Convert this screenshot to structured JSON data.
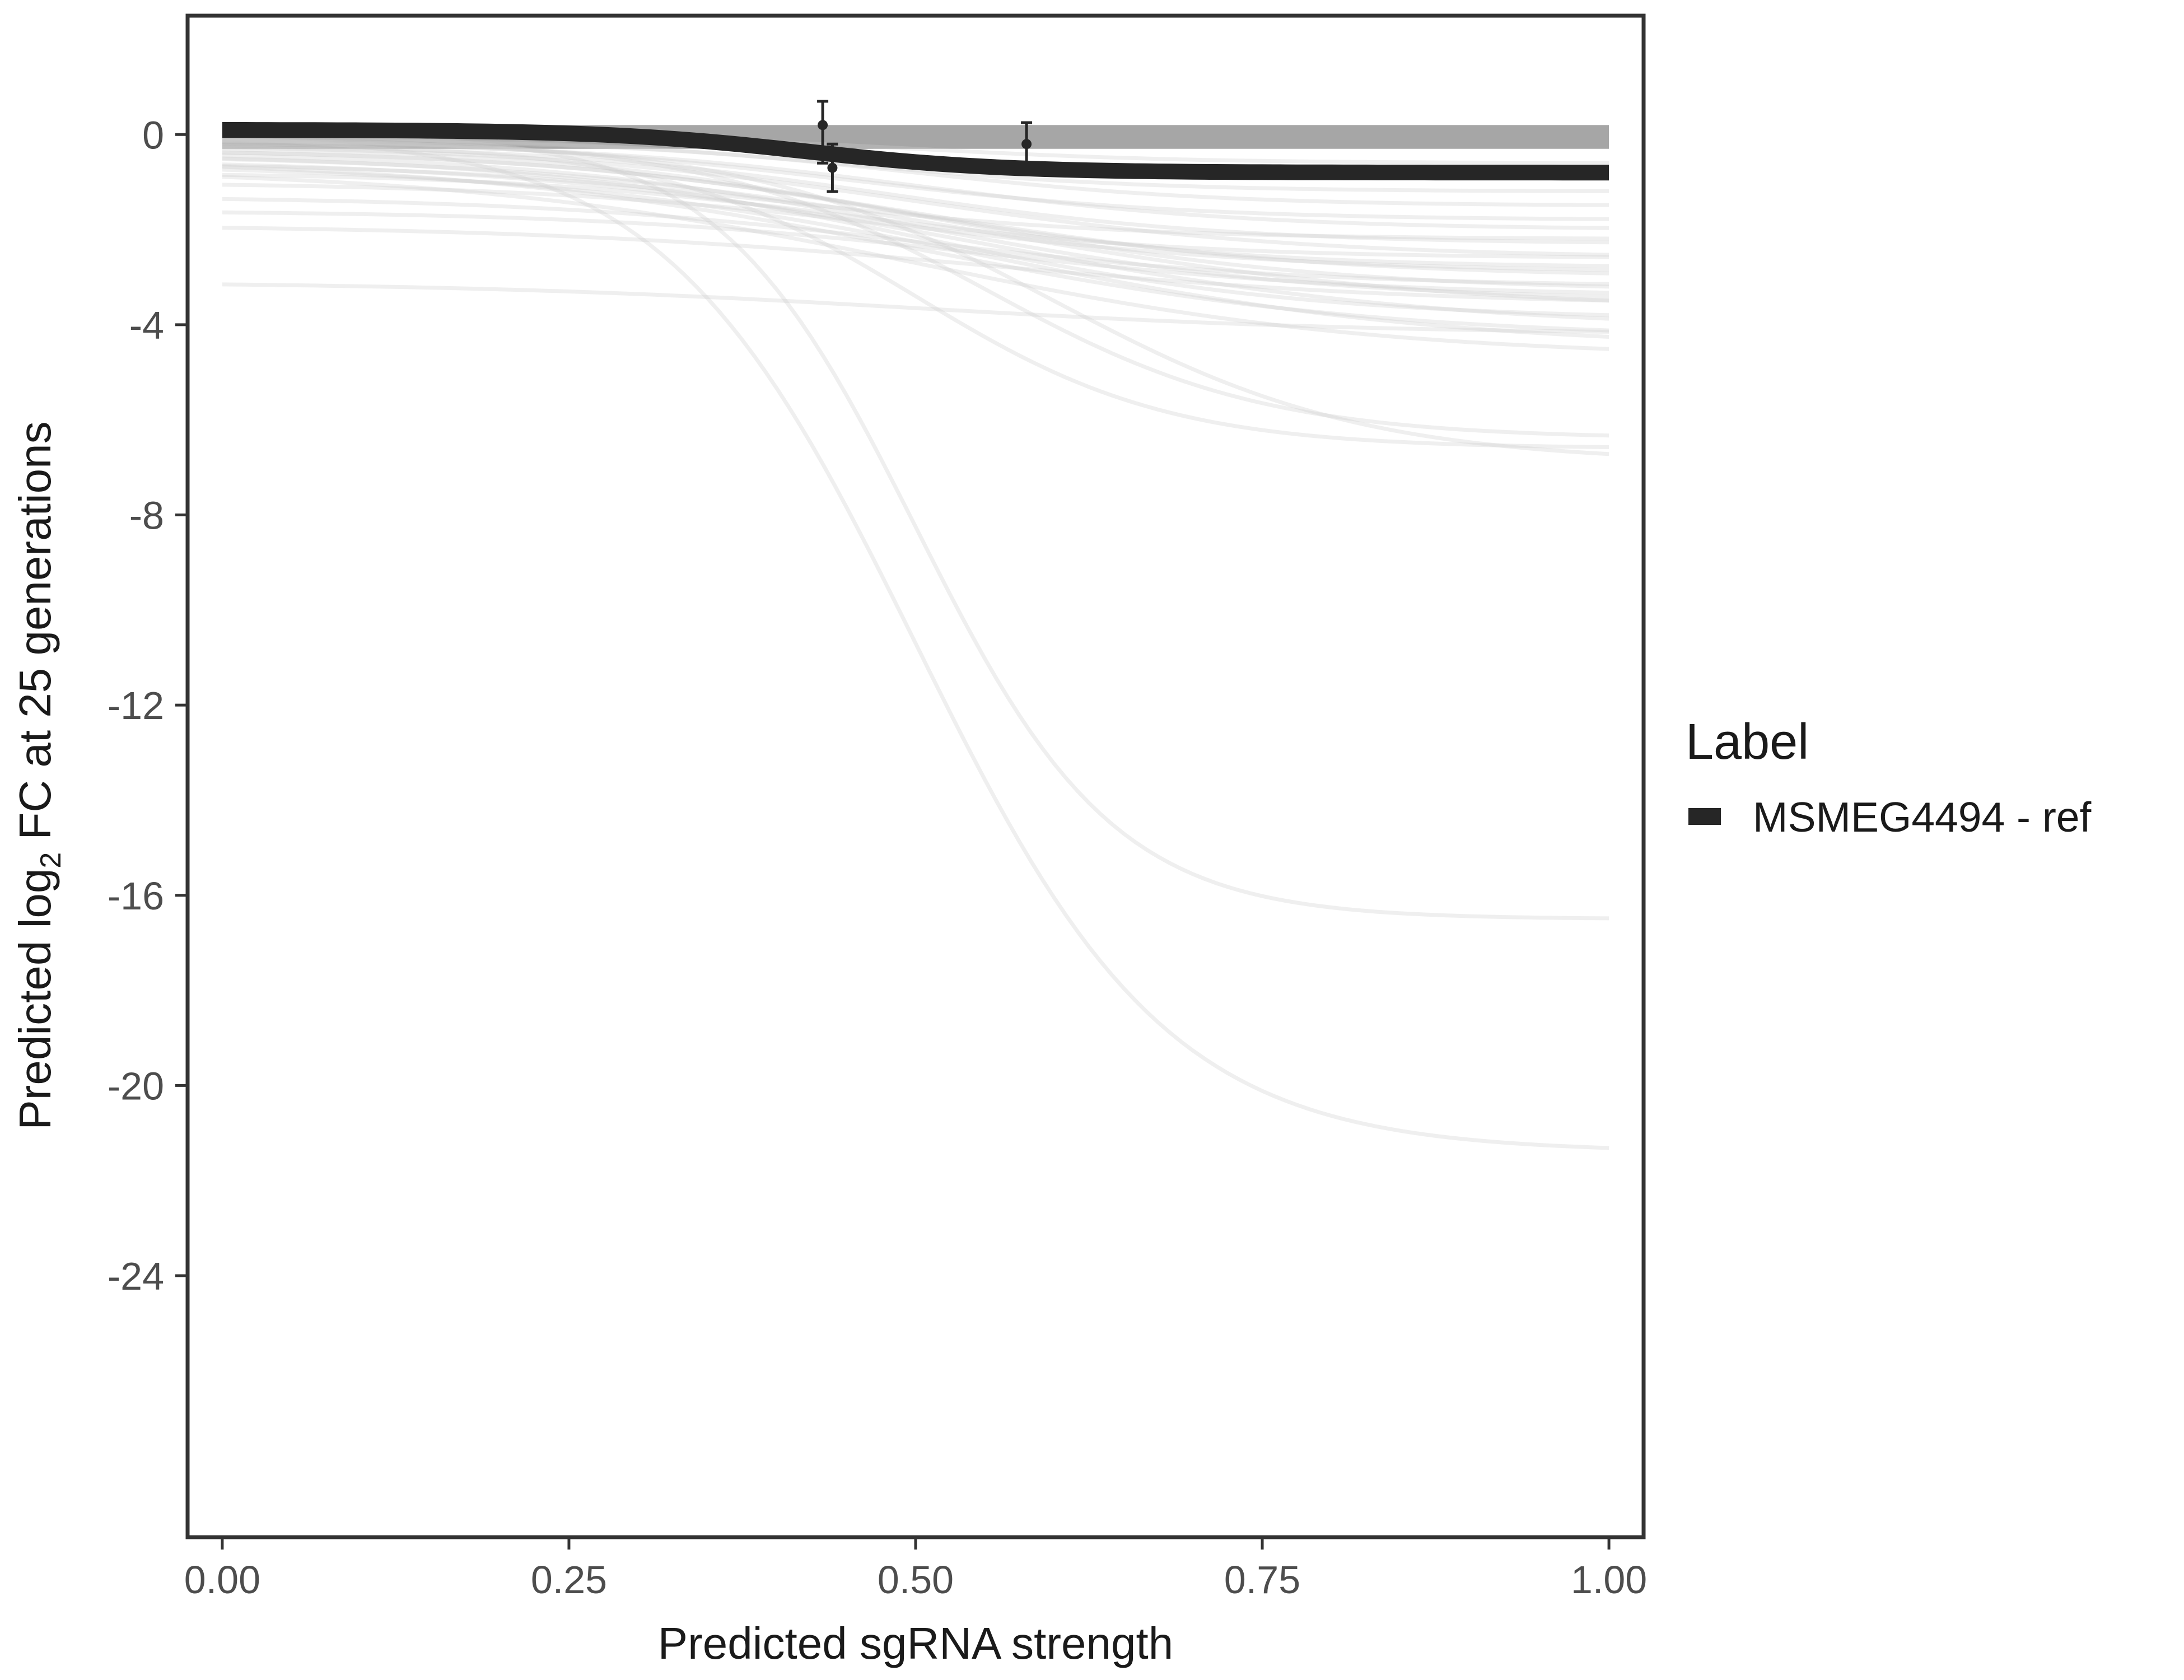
{
  "chart_data": {
    "type": "line",
    "title": "",
    "xlabel": "Predicted sgRNA strength",
    "ylabel_parts": [
      "Predicted  log",
      "2",
      " FC at 25 generations"
    ],
    "xlim": [
      -0.025,
      1.025
    ],
    "ylim": [
      -29.5,
      2.5
    ],
    "x_ticks": [
      0,
      0.25,
      0.5,
      0.75,
      1
    ],
    "x_tick_labels": [
      "0.00",
      "0.25",
      "0.50",
      "0.75",
      "1.00"
    ],
    "y_ticks": [
      0,
      -4,
      -8,
      -12,
      -16,
      -20,
      -24
    ],
    "y_tick_labels": [
      "0",
      "-4",
      "-8",
      "-12",
      "-16",
      "-20",
      "-24"
    ],
    "grid": false,
    "legend": {
      "title": "Label",
      "position": "right",
      "entries": [
        {
          "label": "MSMEG4494 - ref",
          "color": "#262626"
        }
      ]
    },
    "highlight_series": {
      "name": "MSMEG4494 - ref",
      "color": "#262626",
      "start": 0.1,
      "end": -0.8,
      "midpoint": 0.42,
      "steepness": 14
    },
    "band": {
      "x_range": [
        0,
        1
      ],
      "upper": 0.2,
      "lower": -0.3,
      "color": "#a6a6a6"
    },
    "background_curves": [
      {
        "start": 0,
        "end": -0.6,
        "mid": 0.5,
        "k": 10
      },
      {
        "start": 0,
        "end": -0.9,
        "mid": 0.45,
        "k": 10
      },
      {
        "start": -0.05,
        "end": -1.2,
        "mid": 0.45,
        "k": 9
      },
      {
        "start": -0.1,
        "end": -1.5,
        "mid": 0.5,
        "k": 9
      },
      {
        "start": -0.1,
        "end": -1.8,
        "mid": 0.45,
        "k": 8
      },
      {
        "start": -0.15,
        "end": -2.0,
        "mid": 0.5,
        "k": 8
      },
      {
        "start": -0.2,
        "end": -2.3,
        "mid": 0.48,
        "k": 8
      },
      {
        "start": -0.2,
        "end": -2.6,
        "mid": 0.5,
        "k": 7
      },
      {
        "start": -0.25,
        "end": -2.8,
        "mid": 0.47,
        "k": 8
      },
      {
        "start": -0.3,
        "end": -3.0,
        "mid": 0.5,
        "k": 7
      },
      {
        "start": -0.3,
        "end": -3.3,
        "mid": 0.52,
        "k": 7
      },
      {
        "start": -0.35,
        "end": -3.5,
        "mid": 0.5,
        "k": 7
      },
      {
        "start": -0.4,
        "end": -3.7,
        "mid": 0.55,
        "k": 6
      },
      {
        "start": -0.4,
        "end": -3.9,
        "mid": 0.5,
        "k": 7
      },
      {
        "start": -0.5,
        "end": -4.1,
        "mid": 0.55,
        "k": 6
      },
      {
        "start": -0.5,
        "end": -4.3,
        "mid": 0.5,
        "k": 6
      },
      {
        "start": -0.6,
        "end": -4.5,
        "mid": 0.55,
        "k": 6
      },
      {
        "start": -0.7,
        "end": -4.7,
        "mid": 0.5,
        "k": 6
      },
      {
        "start": -0.6,
        "end": -2.2,
        "mid": 0.4,
        "k": 8
      },
      {
        "start": -0.8,
        "end": -2.6,
        "mid": 0.45,
        "k": 8
      },
      {
        "start": -1.0,
        "end": -2.9,
        "mid": 0.5,
        "k": 7
      },
      {
        "start": -1.3,
        "end": -3.2,
        "mid": 0.5,
        "k": 7
      },
      {
        "start": -1.6,
        "end": -3.4,
        "mid": 0.55,
        "k": 7
      },
      {
        "start": -1.9,
        "end": -3.6,
        "mid": 0.55,
        "k": 6
      },
      {
        "start": -3.1,
        "end": -4.2,
        "mid": 0.5,
        "k": 6
      },
      {
        "start": -0.1,
        "end": -6.4,
        "mid": 0.55,
        "k": 10
      },
      {
        "start": -0.2,
        "end": -6.6,
        "mid": 0.5,
        "k": 11
      },
      {
        "start": -0.1,
        "end": -6.9,
        "mid": 0.6,
        "k": 9
      },
      {
        "start": 0,
        "end": -16.5,
        "mid": 0.5,
        "k": 14
      },
      {
        "start": 0,
        "end": -21.4,
        "mid": 0.5,
        "k": 11
      }
    ],
    "points": [
      {
        "x": 0.433,
        "y": 0.2,
        "err_low": -0.6,
        "err_high": 0.7
      },
      {
        "x": 0.44,
        "y": -0.7,
        "err_low": -1.2,
        "err_high": -0.2
      },
      {
        "x": 0.58,
        "y": -0.2,
        "err_low": -0.7,
        "err_high": 0.25
      }
    ]
  }
}
